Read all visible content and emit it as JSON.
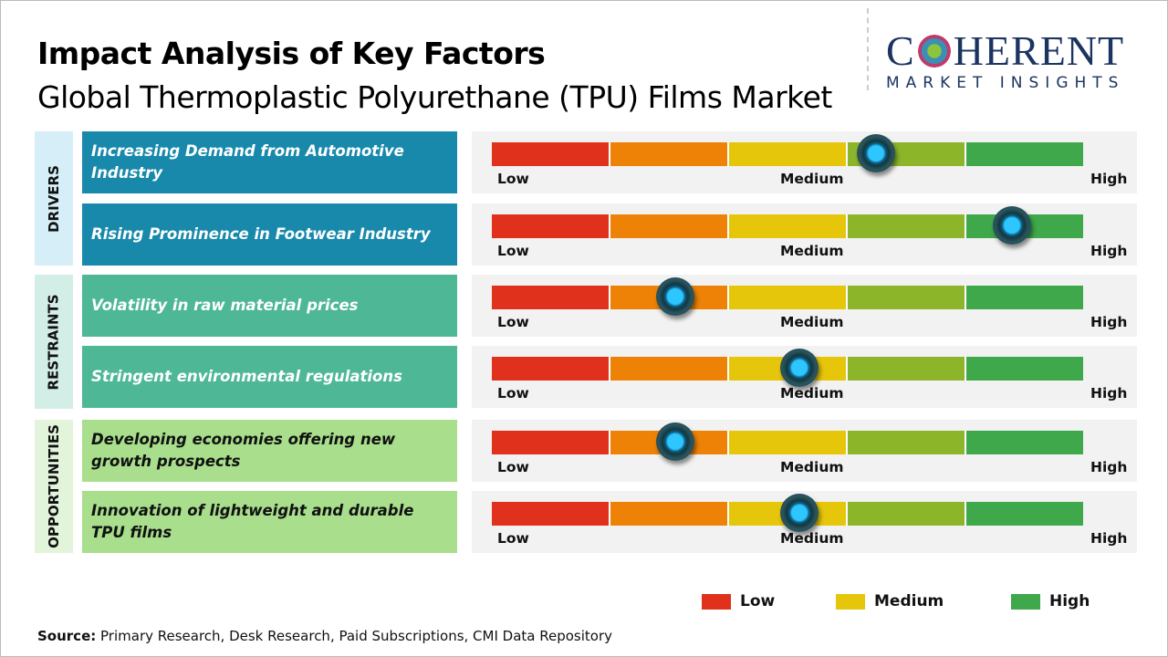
{
  "header": {
    "title": "Impact Analysis of Key Factors",
    "subtitle": "Global Thermoplastic Polyurethane (TPU) Films Market"
  },
  "logo": {
    "line1": "COHERENT",
    "line2": "MARKET INSIGHTS"
  },
  "chart_data": {
    "type": "gauge-table",
    "scale_labels": [
      "Low",
      "Medium",
      "High"
    ],
    "segment_colors": [
      "#e0311c",
      "#ee8206",
      "#e6c60a",
      "#8db52a",
      "#3ea84a"
    ],
    "categories": [
      {
        "name": "DRIVERS",
        "label_bg": "#d5eef8",
        "box_color": "#1889ab",
        "text_color": "#ffffff"
      },
      {
        "name": "RESTRAINTS",
        "label_bg": "#d3eee6",
        "box_color": "#4db796",
        "text_color": "#ffffff"
      },
      {
        "name": "OPPORTUNITIES",
        "label_bg": "#e2f4da",
        "box_color": "#a8de8c",
        "text_color": "#111111"
      }
    ],
    "factors": [
      {
        "category": "DRIVERS",
        "label": "Increasing Demand from Automotive Industry",
        "impact": 0.65
      },
      {
        "category": "DRIVERS",
        "label": "Rising Prominence in Footwear Industry",
        "impact": 0.88
      },
      {
        "category": "RESTRAINTS",
        "label": "Volatility in raw material prices",
        "impact": 0.31
      },
      {
        "category": "RESTRAINTS",
        "label": "Stringent environmental regulations",
        "impact": 0.52
      },
      {
        "category": "OPPORTUNITIES",
        "label": "Developing economies offering new growth prospects",
        "impact": 0.31
      },
      {
        "category": "OPPORTUNITIES",
        "label": "Innovation of lightweight and durable TPU films",
        "impact": 0.52
      }
    ],
    "legend": [
      {
        "label": "Low",
        "color": "#e0311c"
      },
      {
        "label": "Medium",
        "color": "#e6c60a"
      },
      {
        "label": "High",
        "color": "#3ea84a"
      }
    ]
  },
  "footer": {
    "source_label": "Source:",
    "source_text": " Primary Research, Desk Research, Paid Subscriptions, CMI Data Repository"
  }
}
